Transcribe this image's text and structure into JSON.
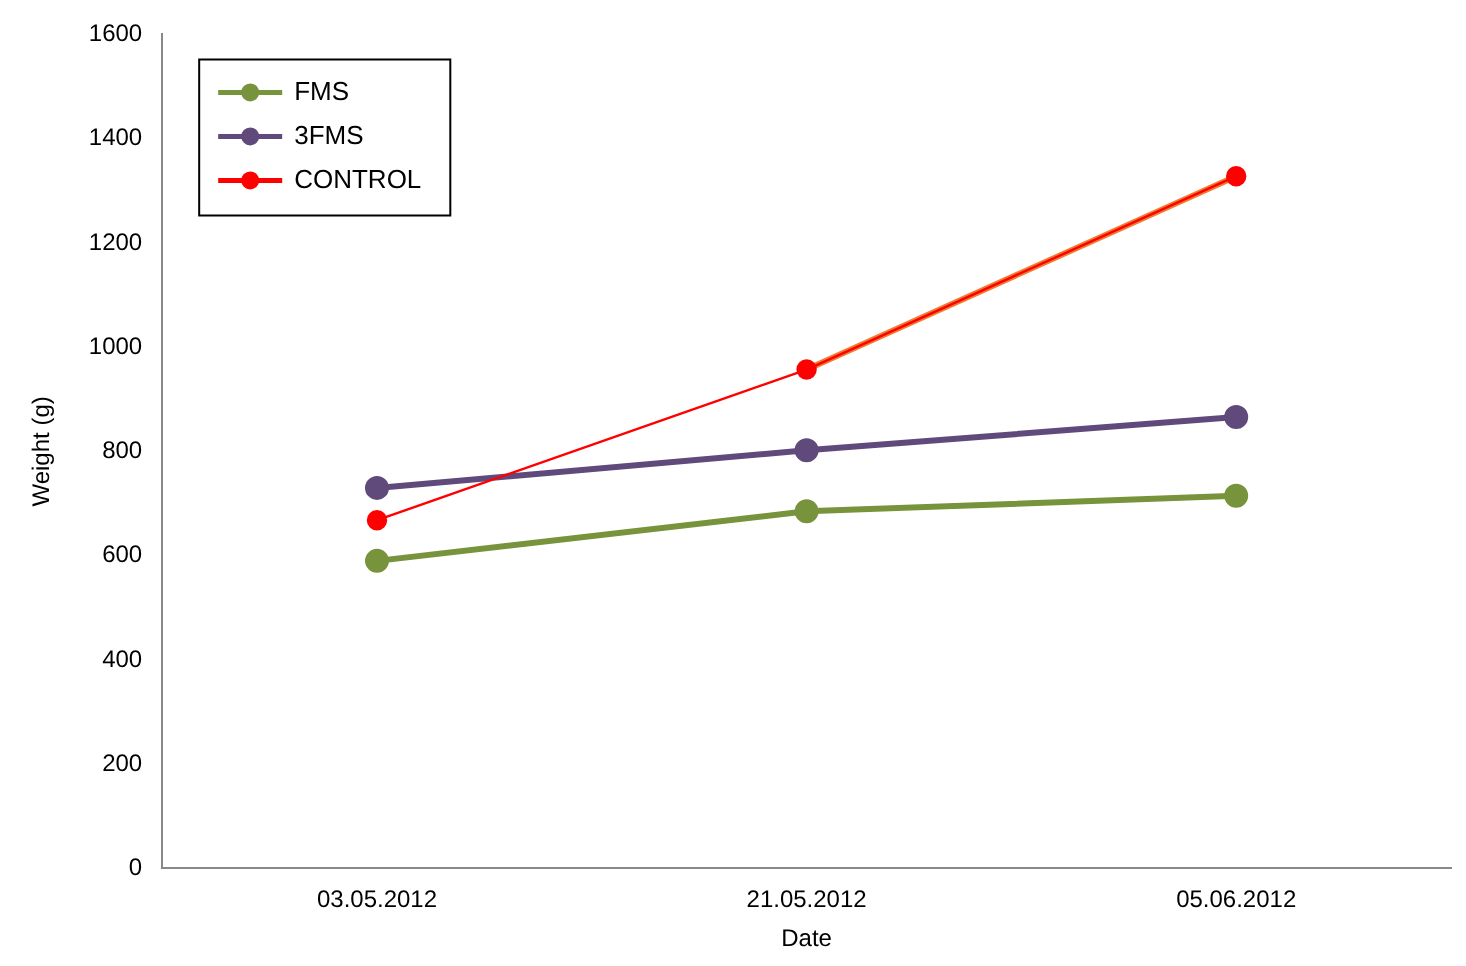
{
  "chart_data": {
    "type": "line",
    "xlabel": "Date",
    "ylabel": "Weight (g)",
    "categories": [
      "03.05.2012",
      "21.05.2012",
      "05.06.2012"
    ],
    "ylim": [
      0,
      1600
    ],
    "yticks": [
      0,
      200,
      400,
      600,
      800,
      1000,
      1200,
      1400,
      1600
    ],
    "grid": false,
    "legend": "top left",
    "marker": "circle",
    "line_style": "solid",
    "series": [
      {
        "name": "FMS",
        "color": "#77933c",
        "values": [
          590,
          685,
          715
        ]
      },
      {
        "name": "3FMS",
        "color": "#604a7b",
        "values": [
          730,
          802,
          866
        ]
      },
      {
        "color": "#ed7d31",
        "values": [
          null,
          957,
          1328
        ],
        "marker": "none"
      },
      {
        "name": "CONTROL",
        "color": "#ff0000",
        "values": [
          668,
          957,
          1328
        ]
      }
    ]
  }
}
